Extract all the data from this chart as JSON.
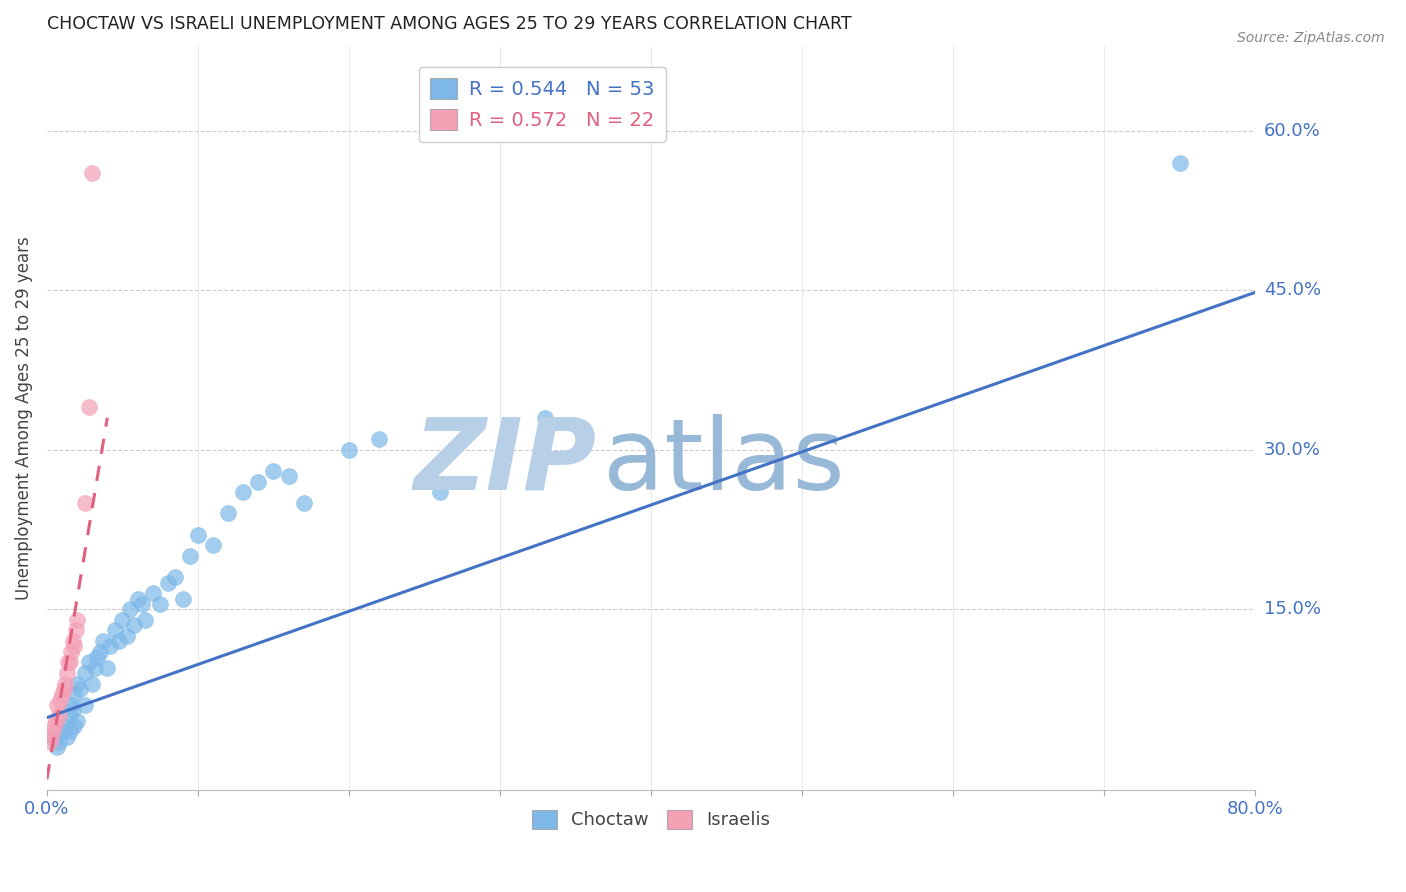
{
  "title": "CHOCTAW VS ISRAELI UNEMPLOYMENT AMONG AGES 25 TO 29 YEARS CORRELATION CHART",
  "source": "Source: ZipAtlas.com",
  "ylabel": "Unemployment Among Ages 25 to 29 years",
  "xlim": [
    0.0,
    0.8
  ],
  "ylim": [
    -0.02,
    0.68
  ],
  "xticks": [
    0.0,
    0.1,
    0.2,
    0.3,
    0.4,
    0.5,
    0.6,
    0.7,
    0.8
  ],
  "xticklabels": [
    "0.0%",
    "",
    "",
    "",
    "",
    "",
    "",
    "",
    "80.0%"
  ],
  "ytick_positions": [
    0.15,
    0.3,
    0.45,
    0.6
  ],
  "ytick_labels": [
    "15.0%",
    "30.0%",
    "45.0%",
    "60.0%"
  ],
  "choctaw_R": 0.544,
  "choctaw_N": 53,
  "israeli_R": 0.572,
  "israeli_N": 22,
  "choctaw_color": "#7db8e8",
  "israeli_color": "#f4a0b5",
  "choctaw_line_color": "#4472c4",
  "israeli_line_color": "#e06080",
  "watermark_zip_color": "#b8cfe8",
  "watermark_atlas_color": "#98b8d8",
  "choctaw_x": [
    0.005,
    0.007,
    0.008,
    0.01,
    0.012,
    0.013,
    0.015,
    0.015,
    0.016,
    0.017,
    0.018,
    0.018,
    0.02,
    0.02,
    0.022,
    0.025,
    0.025,
    0.028,
    0.03,
    0.032,
    0.033,
    0.035,
    0.037,
    0.04,
    0.042,
    0.045,
    0.048,
    0.05,
    0.053,
    0.055,
    0.058,
    0.06,
    0.063,
    0.065,
    0.07,
    0.075,
    0.08,
    0.085,
    0.09,
    0.095,
    0.1,
    0.11,
    0.12,
    0.13,
    0.14,
    0.15,
    0.16,
    0.17,
    0.2,
    0.22,
    0.26,
    0.33,
    0.75
  ],
  "choctaw_y": [
    0.03,
    0.02,
    0.025,
    0.035,
    0.04,
    0.03,
    0.035,
    0.05,
    0.06,
    0.055,
    0.04,
    0.07,
    0.045,
    0.08,
    0.075,
    0.06,
    0.09,
    0.1,
    0.08,
    0.095,
    0.105,
    0.11,
    0.12,
    0.095,
    0.115,
    0.13,
    0.12,
    0.14,
    0.125,
    0.15,
    0.135,
    0.16,
    0.155,
    0.14,
    0.165,
    0.155,
    0.175,
    0.18,
    0.16,
    0.2,
    0.22,
    0.21,
    0.24,
    0.26,
    0.27,
    0.28,
    0.275,
    0.25,
    0.3,
    0.31,
    0.26,
    0.33,
    0.57
  ],
  "israeli_x": [
    0.002,
    0.003,
    0.004,
    0.005,
    0.006,
    0.007,
    0.008,
    0.009,
    0.01,
    0.011,
    0.012,
    0.013,
    0.014,
    0.015,
    0.016,
    0.017,
    0.018,
    0.019,
    0.02,
    0.025,
    0.028,
    0.03
  ],
  "israeli_y": [
    0.025,
    0.03,
    0.035,
    0.04,
    0.045,
    0.06,
    0.05,
    0.065,
    0.07,
    0.075,
    0.08,
    0.09,
    0.1,
    0.1,
    0.11,
    0.12,
    0.115,
    0.13,
    0.14,
    0.25,
    0.34,
    0.56
  ],
  "choctaw_line_x0": 0.0,
  "choctaw_line_y0": 0.048,
  "choctaw_line_x1": 0.8,
  "choctaw_line_y1": 0.448,
  "israeli_line_x0": 0.0,
  "israeli_line_y0": -0.01,
  "israeli_line_x1": 0.04,
  "israeli_line_y1": 0.33
}
